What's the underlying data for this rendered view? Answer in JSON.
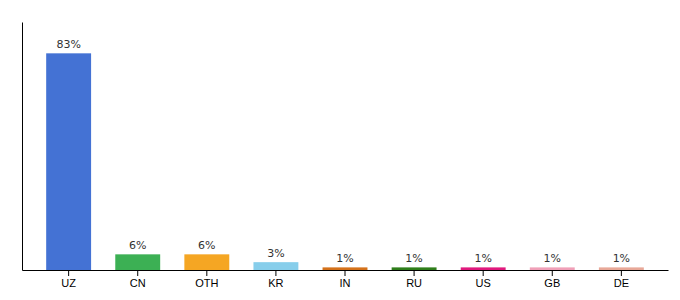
{
  "chart_data": {
    "type": "bar",
    "categories": [
      "UZ",
      "CN",
      "OTH",
      "KR",
      "IN",
      "RU",
      "US",
      "GB",
      "DE"
    ],
    "values": [
      83,
      6,
      6,
      3,
      1,
      1,
      1,
      1,
      1
    ],
    "value_labels": [
      "83%",
      "6%",
      "6%",
      "3%",
      "1%",
      "1%",
      "1%",
      "1%",
      "1%"
    ],
    "colors": [
      "#4472d4",
      "#3cb054",
      "#f5a623",
      "#87ceeb",
      "#d4711a",
      "#2e7d1a",
      "#e0197d",
      "#f0a0b8",
      "#e8a898"
    ],
    "ylim": [
      0,
      95
    ],
    "grid": false,
    "data_labels": true,
    "tick_labels": "x"
  }
}
